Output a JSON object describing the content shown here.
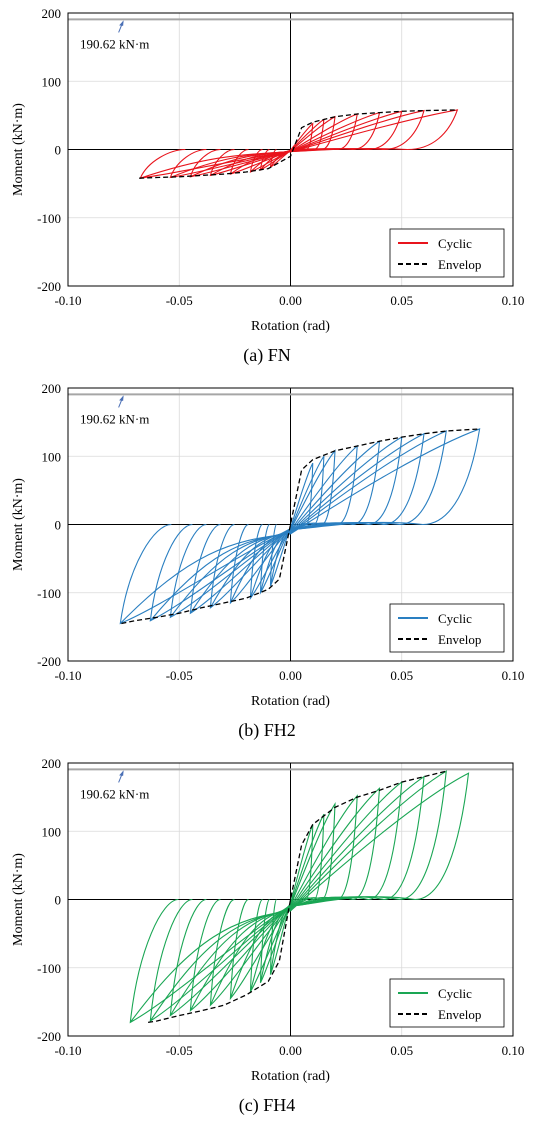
{
  "chart_data": [
    {
      "type": "line",
      "caption": "(a) FN",
      "xlabel": "Rotation (rad)",
      "ylabel": "Moment (kN·m)",
      "xlim": [
        -0.1,
        0.1
      ],
      "ylim": [
        -200,
        200
      ],
      "xticks": [
        -0.1,
        -0.05,
        0,
        0.05,
        0.1
      ],
      "yticks": [
        -200,
        -100,
        0,
        100,
        200
      ],
      "xtick_labels": [
        "-0.10",
        "-0.05",
        "0.00",
        "0.05",
        "0.10"
      ],
      "ytick_labels": [
        "-200",
        "-100",
        "0",
        "100",
        "200"
      ],
      "grid": true,
      "legend_position": "bottom-right",
      "reference_line": {
        "value": 190.62,
        "label": "190.62 kN·m",
        "color": "#a6a6a6"
      },
      "annotation_arrow_color": "#4a6fb5",
      "cycle_amplitudes": [
        0.01,
        0.015,
        0.02,
        0.03,
        0.04,
        0.05,
        0.06,
        0.075
      ],
      "cycle_peaks": [
        38,
        44,
        48,
        52,
        54,
        56,
        57,
        58
      ],
      "cycle_troughs": [
        -26,
        -30,
        -33,
        -36,
        -38,
        -40,
        -41,
        -42
      ],
      "series": [
        {
          "name": "Cyclic",
          "color": "#e8141c",
          "style": "solid"
        },
        {
          "name": "Envelop",
          "color": "#000000",
          "style": "dashed",
          "x": [
            -0.068,
            -0.06,
            -0.05,
            -0.04,
            -0.03,
            -0.02,
            -0.01,
            0,
            0.005,
            0.01,
            0.02,
            0.03,
            0.04,
            0.05,
            0.06,
            0.075
          ],
          "y": [
            -42,
            -41,
            -40,
            -38,
            -36,
            -33,
            -28,
            -10,
            32,
            40,
            48,
            52,
            54,
            56,
            57,
            58
          ]
        }
      ]
    },
    {
      "type": "line",
      "caption": "(b) FH2",
      "xlabel": "Rotation (rad)",
      "ylabel": "Moment (kN·m)",
      "xlim": [
        -0.1,
        0.1
      ],
      "ylim": [
        -200,
        200
      ],
      "xticks": [
        -0.1,
        -0.05,
        0,
        0.05,
        0.1
      ],
      "yticks": [
        -200,
        -100,
        0,
        100,
        200
      ],
      "xtick_labels": [
        "-0.10",
        "-0.05",
        "0.00",
        "0.05",
        "0.10"
      ],
      "ytick_labels": [
        "-200",
        "-100",
        "0",
        "100",
        "200"
      ],
      "grid": true,
      "legend_position": "bottom-right",
      "reference_line": {
        "value": 190.62,
        "label": "190.62 kN·m",
        "color": "#a6a6a6"
      },
      "annotation_arrow_color": "#4a6fb5",
      "cycle_amplitudes": [
        0.01,
        0.015,
        0.02,
        0.03,
        0.04,
        0.05,
        0.06,
        0.07,
        0.085
      ],
      "cycle_peaks": [
        90,
        100,
        108,
        115,
        122,
        128,
        133,
        137,
        140
      ],
      "cycle_troughs": [
        -90,
        -100,
        -108,
        -115,
        -122,
        -130,
        -136,
        -141,
        -145
      ],
      "series": [
        {
          "name": "Cyclic",
          "color": "#2a7fc1",
          "style": "solid"
        },
        {
          "name": "Envelop",
          "color": "#000000",
          "style": "dashed",
          "x": [
            -0.076,
            -0.07,
            -0.06,
            -0.05,
            -0.04,
            -0.03,
            -0.02,
            -0.01,
            -0.005,
            0,
            0.005,
            0.01,
            0.02,
            0.03,
            0.04,
            0.05,
            0.06,
            0.07,
            0.085
          ],
          "y": [
            -145,
            -141,
            -136,
            -130,
            -122,
            -115,
            -108,
            -95,
            -80,
            0,
            80,
            95,
            108,
            115,
            122,
            128,
            133,
            137,
            140
          ]
        }
      ]
    },
    {
      "type": "line",
      "caption": "(c) FH4",
      "xlabel": "Rotation (rad)",
      "ylabel": "Moment (kN·m)",
      "xlim": [
        -0.1,
        0.1
      ],
      "ylim": [
        -200,
        200
      ],
      "xticks": [
        -0.1,
        -0.05,
        0,
        0.05,
        0.1
      ],
      "yticks": [
        -200,
        -100,
        0,
        100,
        200
      ],
      "xtick_labels": [
        "-0.10",
        "-0.05",
        "0.00",
        "0.05",
        "0.10"
      ],
      "ytick_labels": [
        "-200",
        "-100",
        "0",
        "100",
        "200"
      ],
      "grid": true,
      "legend_position": "bottom-right",
      "reference_line": {
        "value": 190.62,
        "label": "190.62 kN·m",
        "color": "#a6a6a6"
      },
      "annotation_arrow_color": "#4a6fb5",
      "cycle_amplitudes": [
        0.01,
        0.015,
        0.02,
        0.03,
        0.04,
        0.05,
        0.06,
        0.07,
        0.08
      ],
      "cycle_peaks": [
        110,
        125,
        140,
        152,
        163,
        172,
        180,
        188,
        185
      ],
      "cycle_troughs": [
        -110,
        -122,
        -135,
        -145,
        -155,
        -163,
        -170,
        -178,
        -180
      ],
      "series": [
        {
          "name": "Cyclic",
          "color": "#1aa654",
          "style": "solid"
        },
        {
          "name": "Envelop",
          "color": "#000000",
          "style": "dashed",
          "x": [
            -0.064,
            -0.06,
            -0.05,
            -0.04,
            -0.03,
            -0.02,
            -0.01,
            -0.005,
            0,
            0.005,
            0.01,
            0.02,
            0.03,
            0.04,
            0.05,
            0.06,
            0.07
          ],
          "y": [
            -180,
            -178,
            -170,
            -163,
            -155,
            -140,
            -120,
            -90,
            0,
            80,
            110,
            135,
            150,
            160,
            172,
            180,
            188
          ]
        }
      ]
    }
  ]
}
